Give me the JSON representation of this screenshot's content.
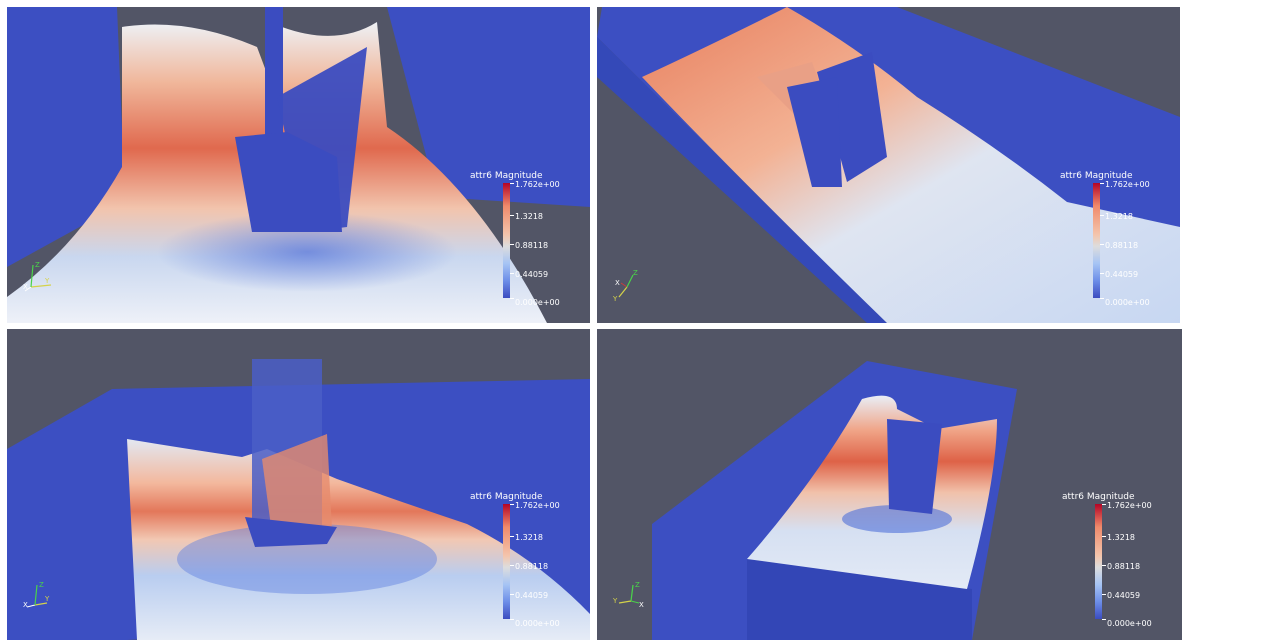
{
  "legend": {
    "title": "attr6 Magnitude",
    "max_label": "1.762e+00",
    "labels": [
      "1.3218",
      "0.88118",
      "0.44059"
    ],
    "min_label": "0.000e+00"
  },
  "axes": {
    "x": "X",
    "y": "Y",
    "z": "Z"
  },
  "colors": {
    "background": "#525566",
    "container": "#3b4cc0",
    "high": "#b40426",
    "mid": "#dddddd",
    "low": "#3b4cc0"
  },
  "icons": {
    "orientation": "axes-triad-icon"
  }
}
